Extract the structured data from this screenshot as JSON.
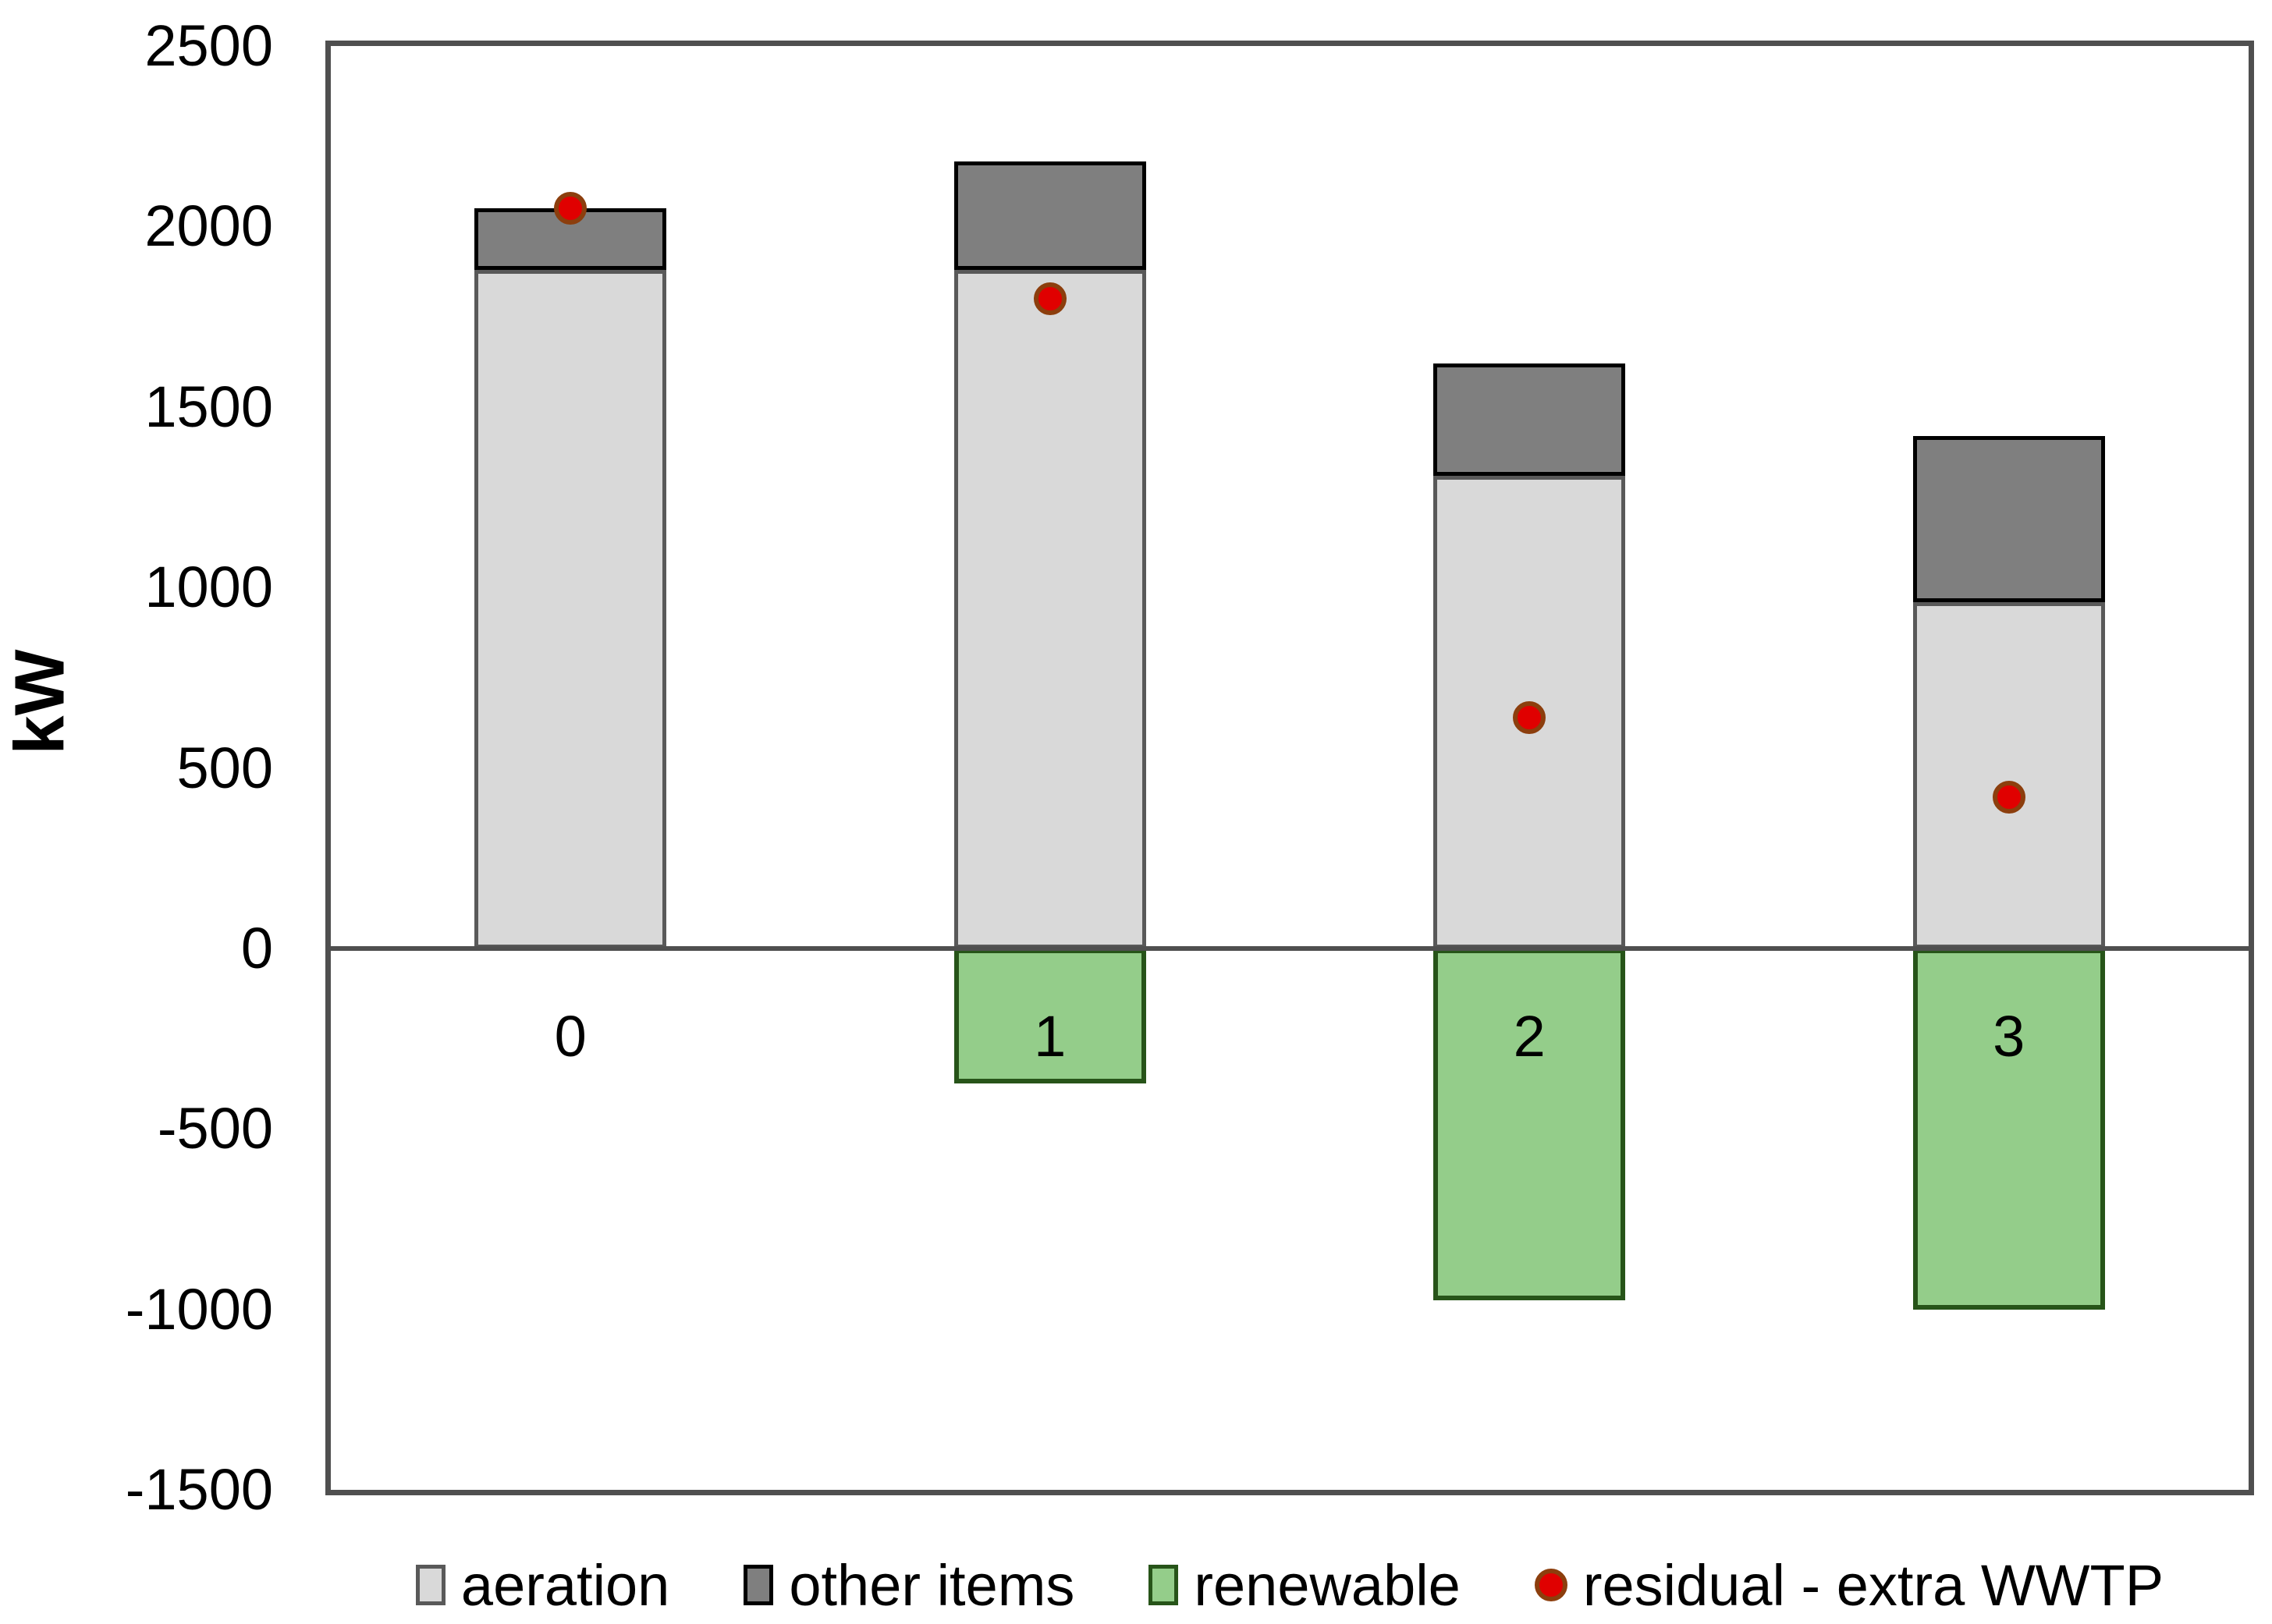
{
  "chart_data": {
    "type": "bar",
    "subtype": "stacked-column-with-scatter-overlay",
    "title": "",
    "xlabel": "",
    "ylabel": "kW",
    "categories": [
      "0",
      "1",
      "2",
      "3"
    ],
    "series": [
      {
        "name": "aeration",
        "type": "bar",
        "fill": "#d9d9d9",
        "border": "#595959",
        "values": [
          1880,
          1880,
          1310,
          960
        ]
      },
      {
        "name": "other items",
        "type": "bar",
        "fill": "#7f7f7f",
        "border": "#000000",
        "values": [
          170,
          300,
          310,
          460
        ]
      },
      {
        "name": "renewable",
        "type": "bar",
        "fill": "#94cd8a",
        "border": "#275419",
        "values": [
          0,
          -375,
          -975,
          -1000
        ]
      },
      {
        "name": "residual - extra WWTP",
        "type": "scatter",
        "fill": "#e00000",
        "border": "#8c3e0d",
        "values": [
          2050,
          1800,
          640,
          420
        ]
      }
    ],
    "ylim": [
      -1500,
      2500
    ],
    "yticks": [
      2500,
      2000,
      1500,
      1000,
      500,
      0,
      -500,
      -1000,
      -1500
    ],
    "grid": false,
    "legend_position": "bottom",
    "axis_color": "#4f4f4f"
  }
}
